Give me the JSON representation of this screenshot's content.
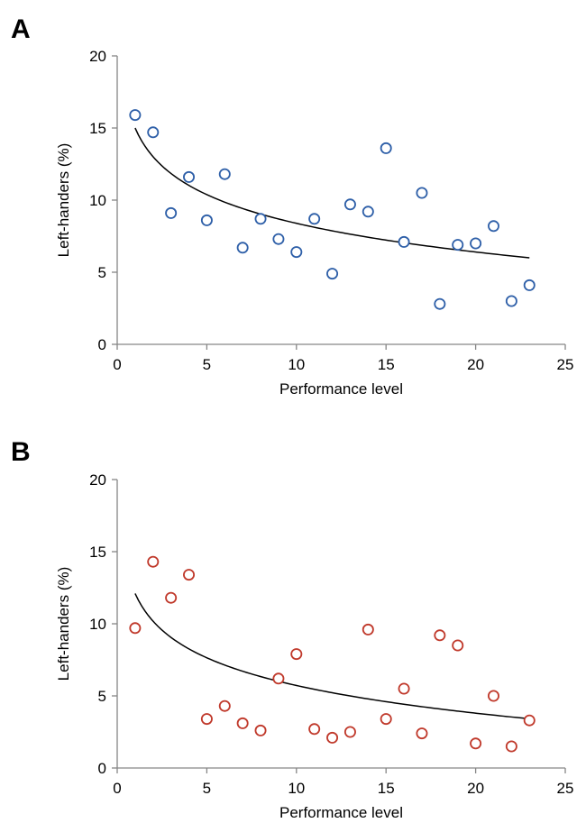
{
  "chart_data": [
    {
      "panel": "A",
      "type": "scatter",
      "xlabel": "Performance level",
      "ylabel": "Left-handers (%)",
      "xlim": [
        0,
        25
      ],
      "ylim": [
        0,
        20
      ],
      "xticks": [
        "0",
        "5",
        "10",
        "15",
        "20",
        "25"
      ],
      "yticks": [
        "0",
        "5",
        "10",
        "15",
        "20"
      ],
      "marker_color": "#2e5fa8",
      "grid": false,
      "points": [
        {
          "x": 1,
          "y": 15.9
        },
        {
          "x": 2,
          "y": 14.7
        },
        {
          "x": 3,
          "y": 9.1
        },
        {
          "x": 4,
          "y": 11.6
        },
        {
          "x": 5,
          "y": 8.6
        },
        {
          "x": 6,
          "y": 11.8
        },
        {
          "x": 7,
          "y": 6.7
        },
        {
          "x": 8,
          "y": 8.7
        },
        {
          "x": 9,
          "y": 7.3
        },
        {
          "x": 10,
          "y": 6.4
        },
        {
          "x": 11,
          "y": 8.7
        },
        {
          "x": 12,
          "y": 4.9
        },
        {
          "x": 13,
          "y": 9.7
        },
        {
          "x": 14,
          "y": 9.2
        },
        {
          "x": 15,
          "y": 13.6
        },
        {
          "x": 16,
          "y": 7.1
        },
        {
          "x": 17,
          "y": 10.5
        },
        {
          "x": 18,
          "y": 2.8
        },
        {
          "x": 19,
          "y": 6.9
        },
        {
          "x": 20,
          "y": 7.0
        },
        {
          "x": 21,
          "y": 8.2
        },
        {
          "x": 22,
          "y": 3.0
        },
        {
          "x": 23,
          "y": 4.1
        }
      ],
      "trendline": {
        "type": "logarithmic",
        "a": 15.0,
        "b": -2.87,
        "x_range": [
          1,
          23
        ]
      }
    },
    {
      "panel": "B",
      "type": "scatter",
      "xlabel": "Performance level",
      "ylabel": "Left-handers (%)",
      "xlim": [
        0,
        25
      ],
      "ylim": [
        0,
        20
      ],
      "xticks": [
        "0",
        "5",
        "10",
        "15",
        "20",
        "25"
      ],
      "yticks": [
        "0",
        "5",
        "10",
        "15",
        "20"
      ],
      "marker_color": "#c0392b",
      "grid": false,
      "points": [
        {
          "x": 1,
          "y": 9.7
        },
        {
          "x": 2,
          "y": 14.3
        },
        {
          "x": 3,
          "y": 11.8
        },
        {
          "x": 4,
          "y": 13.4
        },
        {
          "x": 5,
          "y": 3.4
        },
        {
          "x": 6,
          "y": 4.3
        },
        {
          "x": 7,
          "y": 3.1
        },
        {
          "x": 8,
          "y": 2.6
        },
        {
          "x": 9,
          "y": 6.2
        },
        {
          "x": 10,
          "y": 7.9
        },
        {
          "x": 11,
          "y": 2.7
        },
        {
          "x": 12,
          "y": 2.1
        },
        {
          "x": 13,
          "y": 2.5
        },
        {
          "x": 14,
          "y": 9.6
        },
        {
          "x": 15,
          "y": 3.4
        },
        {
          "x": 16,
          "y": 5.5
        },
        {
          "x": 17,
          "y": 2.4
        },
        {
          "x": 18,
          "y": 9.2
        },
        {
          "x": 19,
          "y": 8.5
        },
        {
          "x": 20,
          "y": 1.7
        },
        {
          "x": 21,
          "y": 5.0
        },
        {
          "x": 22,
          "y": 1.5
        },
        {
          "x": 23,
          "y": 3.3
        }
      ],
      "trendline": {
        "type": "logarithmic",
        "a": 12.1,
        "b": -2.77,
        "x_range": [
          1,
          23
        ]
      }
    }
  ]
}
